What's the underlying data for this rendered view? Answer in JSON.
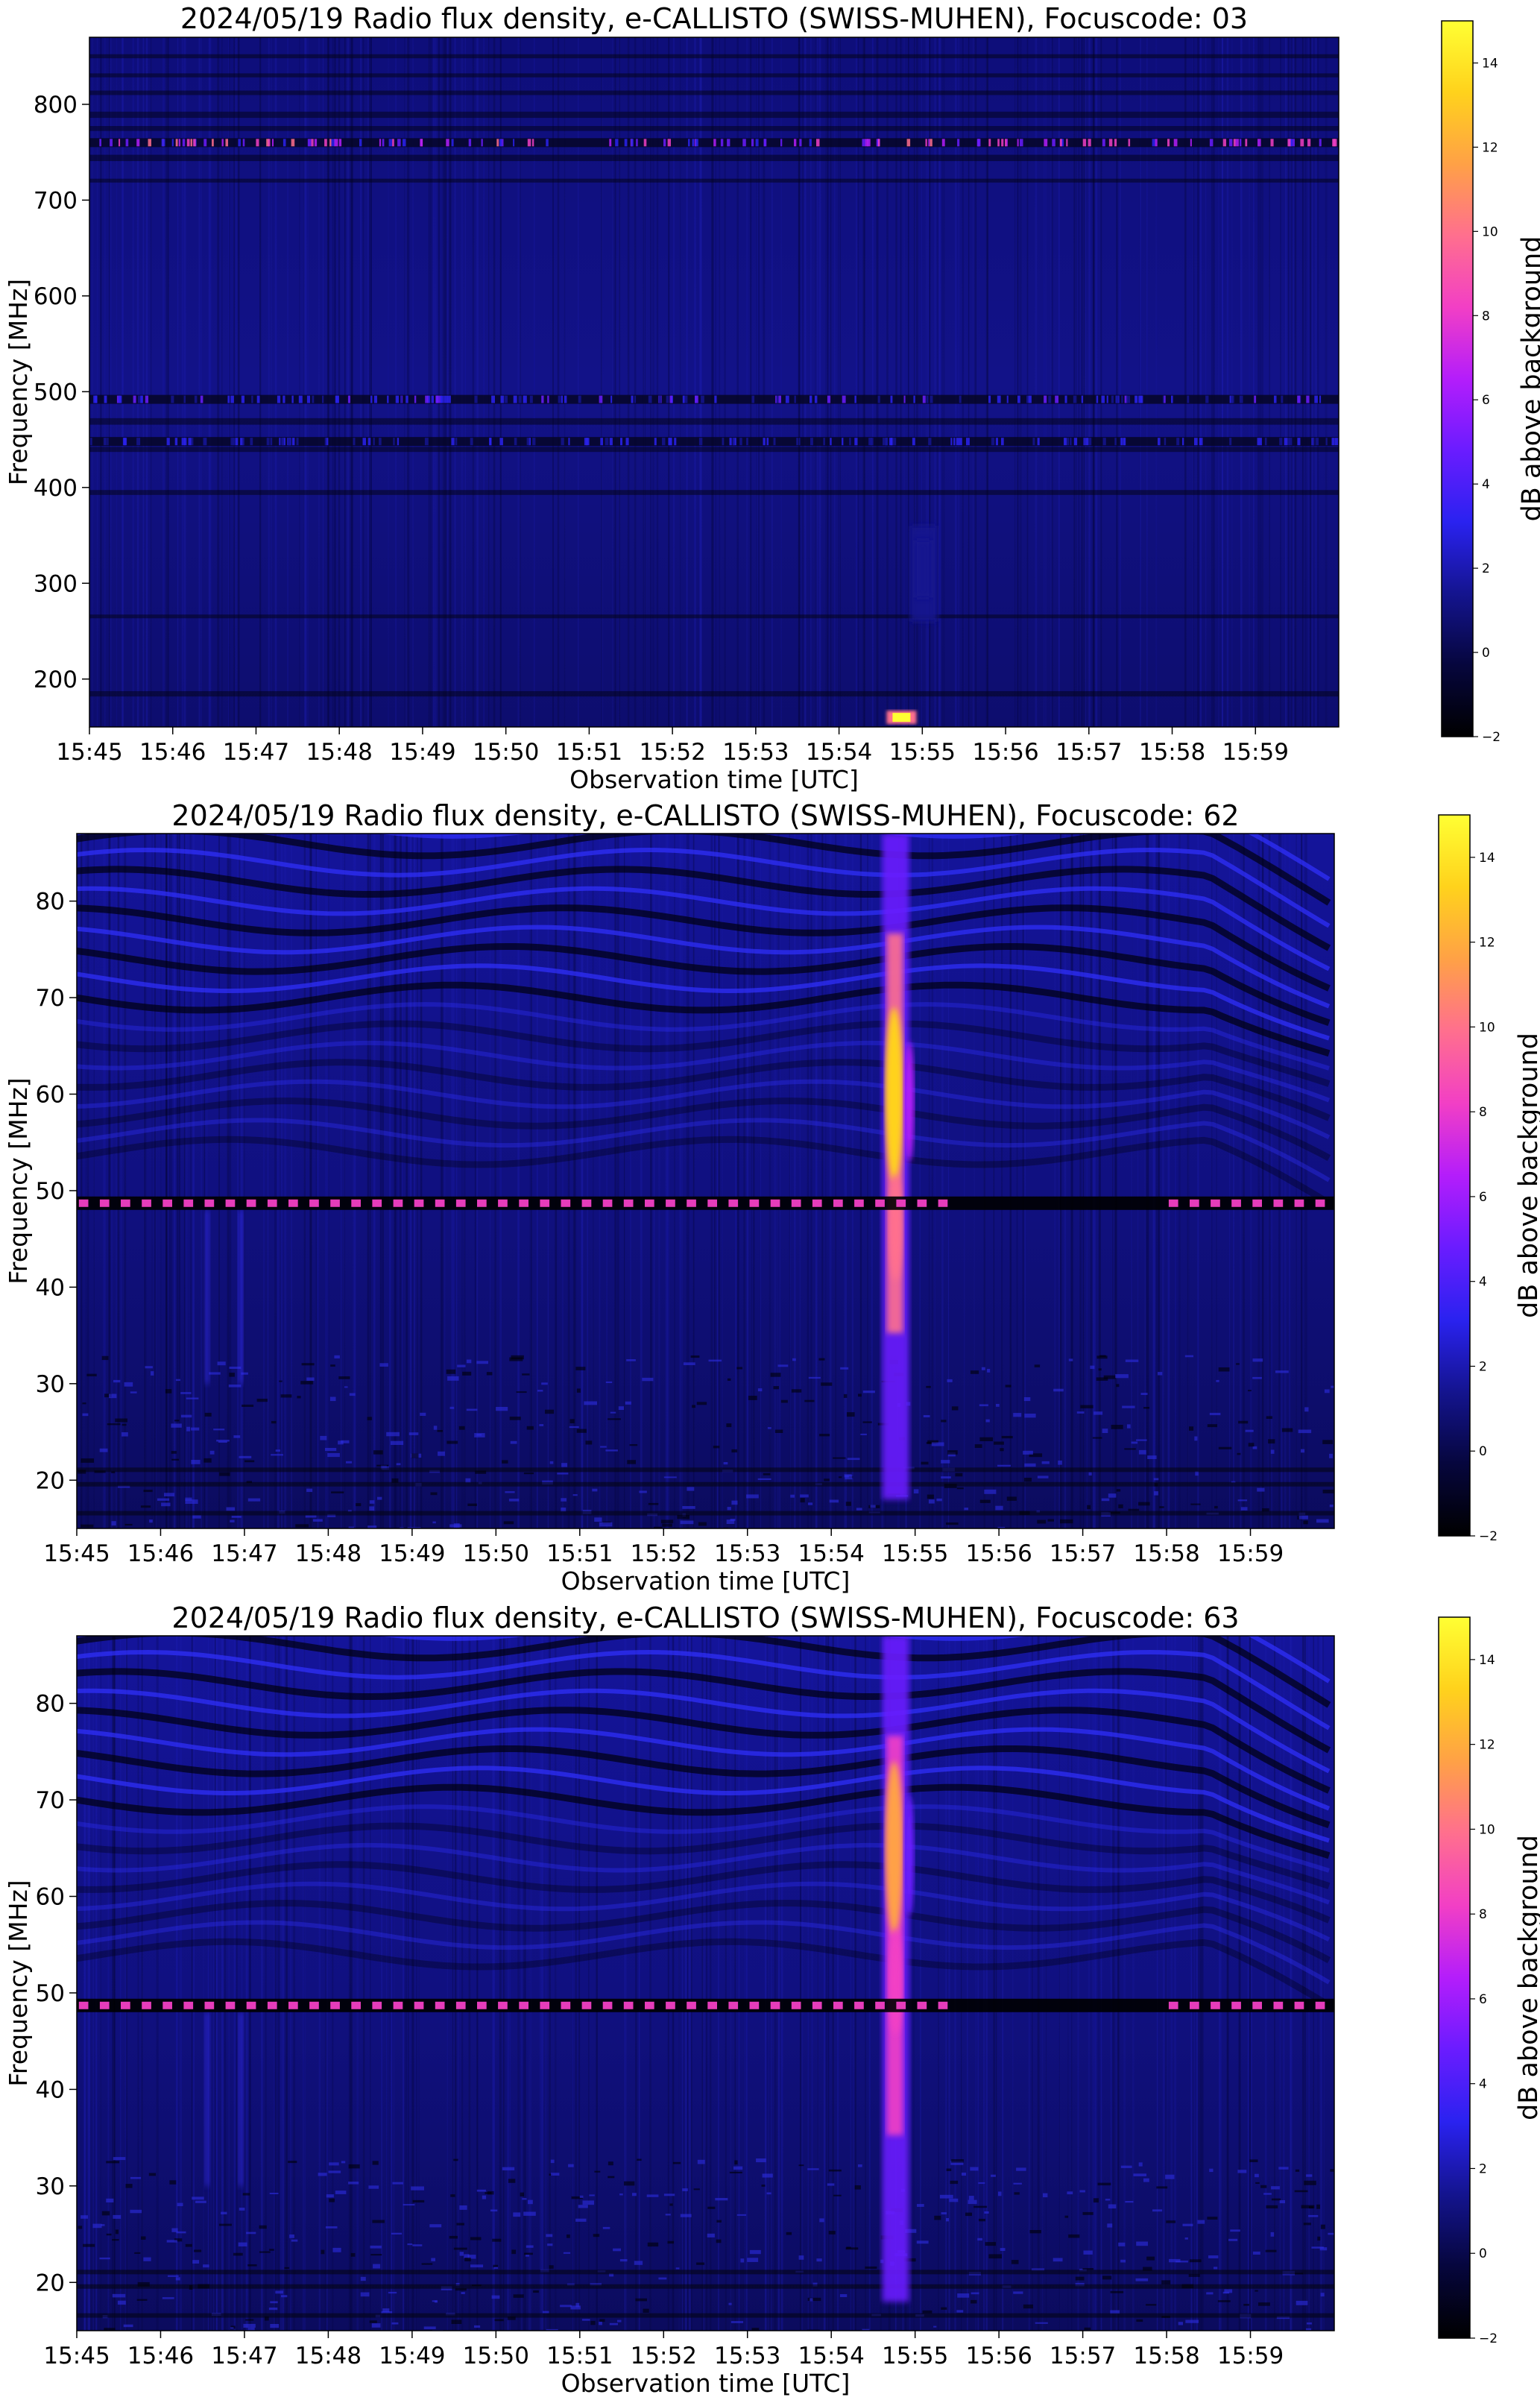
{
  "colorbar": {
    "label": "dB above background",
    "ticks": [
      "−2",
      "0",
      "2",
      "4",
      "6",
      "8",
      "10",
      "12",
      "14"
    ],
    "range": [
      -2,
      15
    ],
    "colormap": [
      "#000000",
      "#06063d",
      "#14148f",
      "#2a22f0",
      "#6a1cff",
      "#b41dfb",
      "#f23fc5",
      "#ff6f8e",
      "#ffa146",
      "#ffd21c",
      "#ffff33"
    ]
  },
  "chart_data": [
    {
      "type": "heatmap",
      "title": "2024/05/19  Radio flux density, e-CALLISTO (SWISS-MUHEN), Focuscode: 03",
      "xlabel": "Observation time [UTC]",
      "ylabel": "Frequency [MHz]",
      "x_ticks": [
        "15:45",
        "15:46",
        "15:47",
        "15:48",
        "15:49",
        "15:50",
        "15:51",
        "15:52",
        "15:53",
        "15:54",
        "15:55",
        "15:56",
        "15:57",
        "15:58",
        "15:59"
      ],
      "y_ticks": [
        200,
        300,
        400,
        500,
        600,
        700,
        800
      ],
      "xlim": [
        "15:45",
        "16:00"
      ],
      "ylim": [
        150,
        870
      ],
      "events": [
        {
          "type": "bright-band",
          "freq_mhz": 760,
          "db": 8
        },
        {
          "type": "bright-band",
          "freq_mhz": 492,
          "db": 4
        },
        {
          "type": "bright-band",
          "freq_mhz": 448,
          "db": 3
        },
        {
          "type": "burst",
          "time": "15:54:45",
          "freq_mhz": 160,
          "db": 15
        },
        {
          "type": "burst",
          "time": "15:55",
          "freq_range_mhz": [
            260,
            360
          ],
          "db": 3
        }
      ]
    },
    {
      "type": "heatmap",
      "title": "2024/05/19  Radio flux density, e-CALLISTO (SWISS-MUHEN), Focuscode: 62",
      "xlabel": "Observation time [UTC]",
      "ylabel": "Frequency [MHz]",
      "x_ticks": [
        "15:45",
        "15:46",
        "15:47",
        "15:48",
        "15:49",
        "15:50",
        "15:51",
        "15:52",
        "15:53",
        "15:54",
        "15:55",
        "15:56",
        "15:57",
        "15:58",
        "15:59"
      ],
      "y_ticks": [
        20,
        30,
        40,
        50,
        60,
        70,
        80
      ],
      "xlim": [
        "15:45",
        "16:00"
      ],
      "ylim": [
        15,
        87
      ],
      "events": [
        {
          "type": "burst",
          "time": "15:54:45",
          "freq_range_mhz": [
            18,
            87
          ],
          "peak_freq_mhz": 60,
          "db": 14
        },
        {
          "type": "dashed-band",
          "freq_mhz": 48.7,
          "db": 8
        }
      ]
    },
    {
      "type": "heatmap",
      "title": "2024/05/19  Radio flux density, e-CALLISTO (SWISS-MUHEN), Focuscode: 63",
      "xlabel": "Observation time [UTC]",
      "ylabel": "Frequency [MHz]",
      "x_ticks": [
        "15:45",
        "15:46",
        "15:47",
        "15:48",
        "15:49",
        "15:50",
        "15:51",
        "15:52",
        "15:53",
        "15:54",
        "15:55",
        "15:56",
        "15:57",
        "15:58",
        "15:59"
      ],
      "y_ticks": [
        20,
        30,
        40,
        50,
        60,
        70,
        80
      ],
      "xlim": [
        "15:45",
        "16:00"
      ],
      "ylim": [
        15,
        87
      ],
      "events": [
        {
          "type": "burst",
          "time": "15:54:45",
          "freq_range_mhz": [
            18,
            87
          ],
          "peak_freq_mhz": 65,
          "db": 12
        },
        {
          "type": "dashed-band",
          "freq_mhz": 48.7,
          "db": 8
        }
      ]
    }
  ]
}
